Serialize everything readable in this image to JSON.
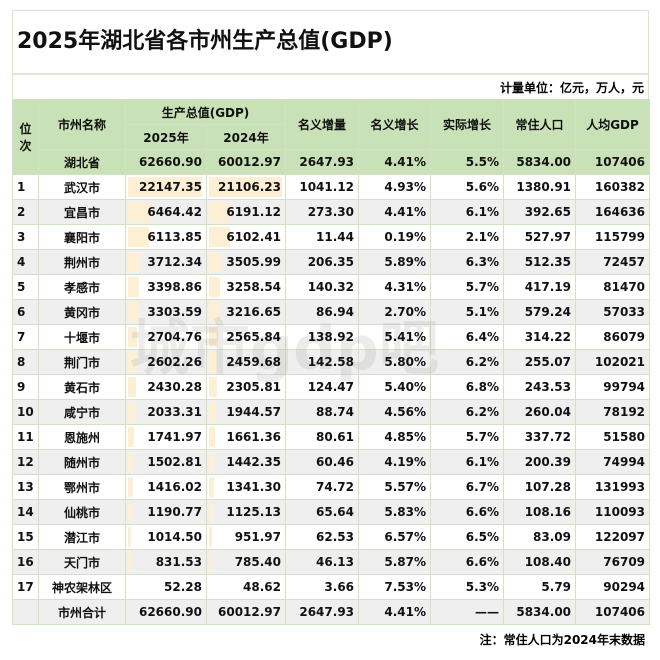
{
  "title": "2025年湖北省各市州生产总值(GDP)",
  "units": "计量单位：亿元，万人，元",
  "headers": {
    "rank": "位次",
    "name": "市州名称",
    "gdp": "生产总值(GDP)",
    "y2025": "2025年",
    "y2024": "2024年",
    "inc": "名义增量",
    "nom": "名义增长",
    "real": "实际增长",
    "pop": "常住人口",
    "pc": "人均GDP"
  },
  "province": [
    "湖北省",
    "62660.90",
    "60012.97",
    "2647.93",
    "4.41%",
    "5.5%",
    "5834.00",
    "107406"
  ],
  "rows": [
    [
      "1",
      "武汉市",
      "22147.35",
      "21106.23",
      "1041.12",
      "4.93%",
      "5.6%",
      "1380.91",
      "160382"
    ],
    [
      "2",
      "宜昌市",
      "6464.42",
      "6191.12",
      "273.30",
      "4.41%",
      "6.1%",
      "392.65",
      "164636"
    ],
    [
      "3",
      "襄阳市",
      "6113.85",
      "6102.41",
      "11.44",
      "0.19%",
      "2.1%",
      "527.97",
      "115799"
    ],
    [
      "4",
      "荆州市",
      "3712.34",
      "3505.99",
      "206.35",
      "5.89%",
      "6.3%",
      "512.35",
      "72457"
    ],
    [
      "5",
      "孝感市",
      "3398.86",
      "3258.54",
      "140.32",
      "4.31%",
      "5.7%",
      "417.19",
      "81470"
    ],
    [
      "6",
      "黄冈市",
      "3303.59",
      "3216.65",
      "86.94",
      "2.70%",
      "5.1%",
      "579.24",
      "57033"
    ],
    [
      "7",
      "十堰市",
      "2704.76",
      "2565.84",
      "138.92",
      "5.41%",
      "6.4%",
      "314.22",
      "86079"
    ],
    [
      "8",
      "荆门市",
      "2602.26",
      "2459.68",
      "142.58",
      "5.80%",
      "6.2%",
      "255.07",
      "102021"
    ],
    [
      "9",
      "黄石市",
      "2430.28",
      "2305.81",
      "124.47",
      "5.40%",
      "6.8%",
      "243.53",
      "99794"
    ],
    [
      "10",
      "咸宁市",
      "2033.31",
      "1944.57",
      "88.74",
      "4.56%",
      "6.2%",
      "260.04",
      "78192"
    ],
    [
      "11",
      "恩施州",
      "1741.97",
      "1661.36",
      "80.61",
      "4.85%",
      "5.7%",
      "337.72",
      "51580"
    ],
    [
      "12",
      "随州市",
      "1502.81",
      "1442.35",
      "60.46",
      "4.19%",
      "6.1%",
      "200.39",
      "74994"
    ],
    [
      "13",
      "鄂州市",
      "1416.02",
      "1341.30",
      "74.72",
      "5.57%",
      "6.7%",
      "107.28",
      "131993"
    ],
    [
      "14",
      "仙桃市",
      "1190.77",
      "1125.13",
      "65.64",
      "5.83%",
      "6.6%",
      "108.16",
      "110093"
    ],
    [
      "15",
      "潜江市",
      "1014.50",
      "951.97",
      "62.53",
      "6.57%",
      "6.5%",
      "83.09",
      "122097"
    ],
    [
      "16",
      "天门市",
      "831.53",
      "785.40",
      "46.13",
      "5.87%",
      "6.6%",
      "108.40",
      "76709"
    ],
    [
      "17",
      "神农架林区",
      "52.28",
      "48.62",
      "3.66",
      "7.53%",
      "5.3%",
      "5.79",
      "90294"
    ]
  ],
  "total": [
    "市州合计",
    "62660.90",
    "60012.97",
    "2647.93",
    "4.41%",
    "——",
    "5834.00",
    "107406"
  ],
  "note": "注：常住人口为2024年末数据",
  "watermark": "城市gdp吧",
  "colors": {
    "header": "#c9e1b6",
    "bar": "#fcefd3",
    "alt_row": "#efefef"
  }
}
